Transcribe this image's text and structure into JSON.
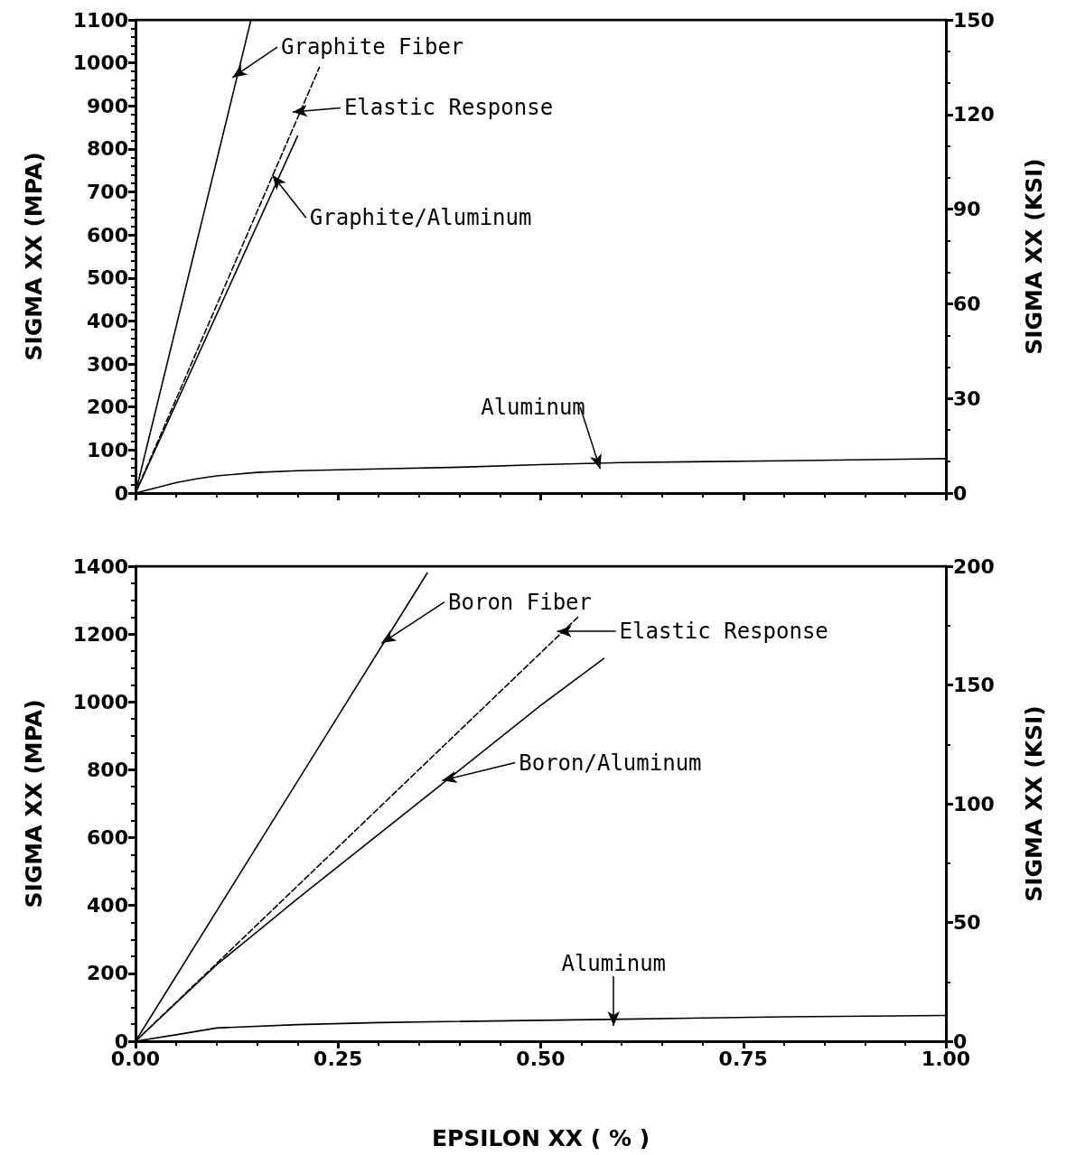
{
  "chart_data": [
    {
      "type": "line",
      "ylabel": "SIGMA XX (MPA)",
      "y2label": "SIGMA XX (KSI)",
      "xlim": [
        0,
        1
      ],
      "xticks": [
        0,
        0.25,
        0.5,
        0.75,
        1
      ],
      "ylim": [
        0,
        1100
      ],
      "yticks": [
        0,
        100,
        200,
        300,
        400,
        500,
        600,
        700,
        800,
        900,
        1000,
        1100
      ],
      "y2lim": [
        0,
        150
      ],
      "y2ticks": [
        0,
        30,
        60,
        90,
        120,
        150
      ],
      "tick_labels": "y",
      "grid": false,
      "marker": "none",
      "series": [
        {
          "color": "#000000",
          "x": [
            0,
            0.1425
          ],
          "values": [
            0,
            1100
          ]
        },
        {
          "color": "#000000",
          "line_style": "dashed",
          "x": [
            0,
            0.227
          ],
          "values": [
            0,
            990
          ]
        },
        {
          "color": "#000000",
          "x": [
            0,
            0.1,
            0.2
          ],
          "values": [
            0,
            415,
            830
          ]
        },
        {
          "color": "#000000",
          "x": [
            0,
            0.025,
            0.05,
            0.075,
            0.1,
            0.15,
            0.2,
            0.3,
            0.4,
            0.5,
            0.6,
            0.8,
            1.0
          ],
          "values": [
            0,
            12,
            24,
            33,
            40,
            48,
            52,
            56,
            60,
            66,
            71,
            75,
            80
          ]
        }
      ],
      "annotations": [
        {
          "text": "Graphite Fiber",
          "x": 0.126,
          "y": 974
        },
        {
          "text": "Elastic Response",
          "x": 0.2017,
          "y": 887
        },
        {
          "text": "Graphite/Aluminum",
          "x": 0.1737,
          "y": 728
        },
        {
          "text": "Aluminum",
          "x": 0.571,
          "y": 70
        }
      ]
    },
    {
      "type": "line",
      "xlabel": "EPSILON XX ( % )",
      "ylabel": "SIGMA XX (MPA)",
      "y2label": "SIGMA XX (KSI)",
      "xlim": [
        0,
        1
      ],
      "xticks": [
        {
          "value": 0,
          "label": "0.00"
        },
        0.25,
        {
          "value": 0.5,
          "label": "0.50"
        },
        0.75,
        {
          "value": 1,
          "label": "1.00"
        }
      ],
      "ylim": [
        0,
        1400
      ],
      "yticks": [
        0,
        200,
        400,
        600,
        800,
        1000,
        1200,
        1400
      ],
      "y2lim": [
        0,
        200
      ],
      "y2ticks": [
        0,
        50,
        100,
        150,
        200
      ],
      "grid": false,
      "marker": "none",
      "series": [
        {
          "color": "#000000",
          "x": [
            0,
            0.36
          ],
          "values": [
            0,
            1380
          ]
        },
        {
          "color": "#000000",
          "line_style": "dashed",
          "x": [
            0,
            0.546
          ],
          "values": [
            0,
            1250
          ]
        },
        {
          "color": "#000000",
          "x": [
            0,
            0.1,
            0.2,
            0.3,
            0.386,
            0.5,
            0.578
          ],
          "values": [
            0,
            225,
            420,
            610,
            773,
            990,
            1128
          ]
        },
        {
          "color": "#000000",
          "x": [
            0,
            0.05,
            0.1,
            0.2,
            0.3,
            0.6,
            0.8,
            1.0
          ],
          "values": [
            0,
            19,
            39,
            49,
            55,
            65,
            72,
            76
          ]
        }
      ],
      "annotations": [
        {
          "text": "Boron Fiber",
          "x": 0.31,
          "y": 1183
        },
        {
          "text": "Elastic Response",
          "x": 0.528,
          "y": 1208
        },
        {
          "text": "Boron/Aluminum",
          "x": 0.386,
          "y": 773
        },
        {
          "text": "Aluminum",
          "x": 0.59,
          "y": 64
        }
      ]
    }
  ]
}
